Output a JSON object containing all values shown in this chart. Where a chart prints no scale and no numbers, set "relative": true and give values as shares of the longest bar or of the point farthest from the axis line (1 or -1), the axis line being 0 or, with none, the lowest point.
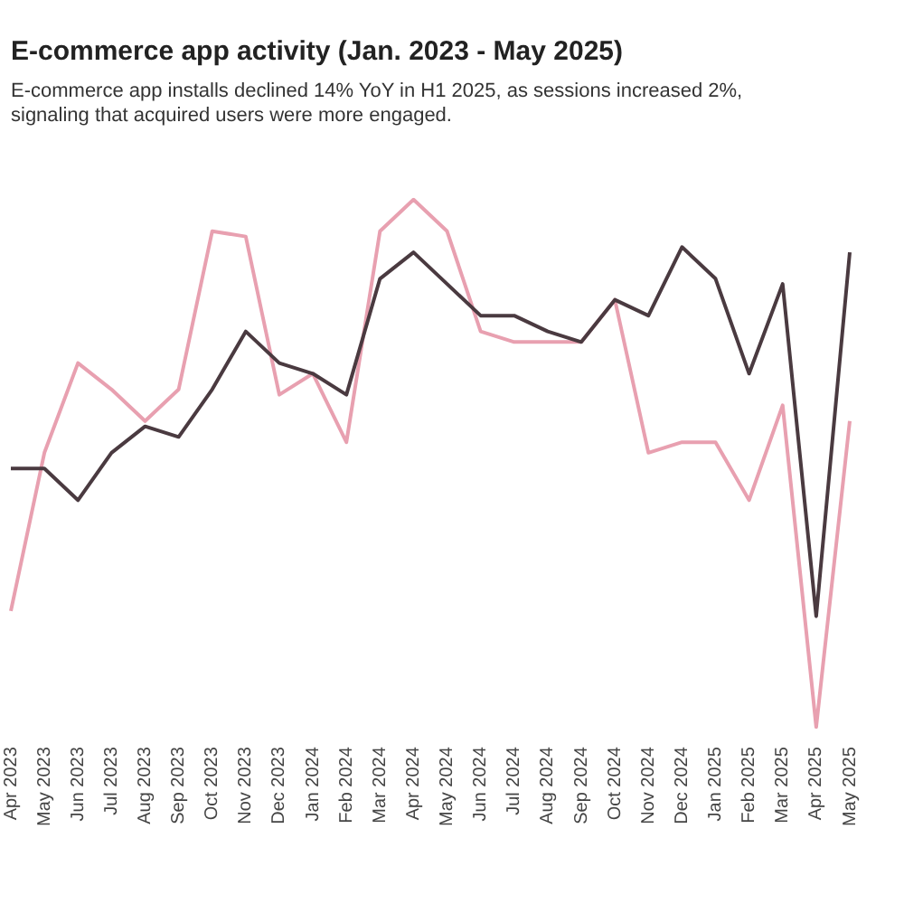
{
  "chart_data": {
    "type": "line",
    "title": "E-commerce app activity (Jan. 2023 - May 2025)",
    "subtitle": "E-commerce app installs declined 14% YoY in H1 2025, as sessions increased 2%, signaling that acquired users were more engaged.",
    "categories": [
      "Apr 2023",
      "May 2023",
      "Jun 2023",
      "Jul 2023",
      "Aug 2023",
      "Sep 2023",
      "Oct 2023",
      "Nov 2023",
      "Dec 2023",
      "Jan 2024",
      "Feb 2024",
      "Mar 2024",
      "Apr 2024",
      "May 2024",
      "Jun 2024",
      "Jul 2024",
      "Aug 2024",
      "Sep 2024",
      "Oct 2024",
      "Nov 2024",
      "Dec 2024",
      "Jan 2025",
      "Feb 2025",
      "Mar 2025",
      "Apr 2025",
      "May 2025"
    ],
    "relative": true,
    "grid": false,
    "legend": false,
    "marker": "none",
    "line_style": "solid",
    "series": [
      {
        "color": "#4a3a40",
        "values": [
          0.49,
          0.49,
          0.43,
          0.52,
          0.57,
          0.55,
          0.64,
          0.75,
          0.69,
          0.67,
          0.63,
          0.85,
          0.9,
          0.84,
          0.78,
          0.78,
          0.75,
          0.73,
          0.81,
          0.78,
          0.91,
          0.85,
          0.67,
          0.84,
          0.21,
          0.9
        ]
      },
      {
        "color": "#e8a0b0",
        "values": [
          0.22,
          0.52,
          0.69,
          0.64,
          0.58,
          0.64,
          0.94,
          0.93,
          0.63,
          0.67,
          0.54,
          0.94,
          1,
          0.94,
          0.75,
          0.73,
          0.73,
          0.73,
          0.81,
          0.52,
          0.54,
          0.54,
          0.43,
          0.61,
          0,
          0.58
        ]
      }
    ]
  }
}
